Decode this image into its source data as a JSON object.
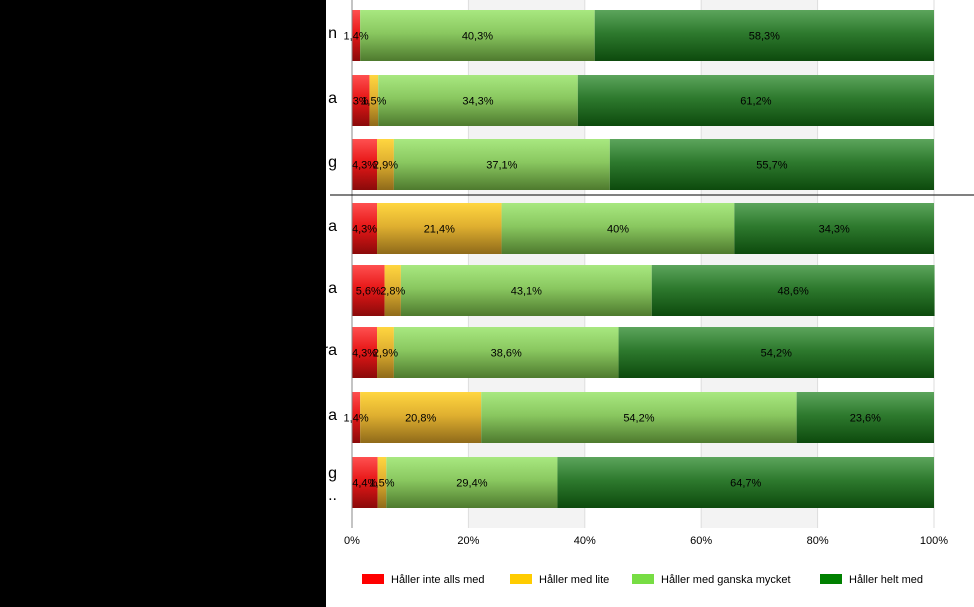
{
  "chart_data": {
    "type": "bar",
    "orientation": "horizontal",
    "stacked": true,
    "categories": [
      "n",
      "a",
      "g",
      "a",
      "a",
      "ra",
      "a",
      "g\n.."
    ],
    "series": [
      {
        "name": "Håller inte alls med",
        "color": "#ff0000",
        "values": [
          1.4,
          3,
          4.3,
          4.3,
          5.6,
          4.3,
          1.4,
          4.4
        ],
        "labels": [
          "1,4%",
          "3%",
          "4,3%",
          "4,3%",
          "5,6%",
          "4,3%",
          "1,4%",
          "4,4%"
        ]
      },
      {
        "name": "Håller med lite",
        "color": "#ffcc00",
        "values": [
          0,
          1.5,
          2.9,
          21.4,
          2.8,
          2.9,
          20.8,
          1.5
        ],
        "labels": [
          "",
          "1,5%",
          "2,9%",
          "21,4%",
          "2,8%",
          "2,9%",
          "20,8%",
          "1,5%"
        ]
      },
      {
        "name": "Håller med ganska mycket",
        "color": "#77dd44",
        "values": [
          40.3,
          34.3,
          37.1,
          40,
          43.1,
          38.6,
          54.2,
          29.4
        ],
        "labels": [
          "40,3%",
          "34,3%",
          "37,1%",
          "40%",
          "43,1%",
          "38,6%",
          "54,2%",
          "29,4%"
        ]
      },
      {
        "name": "Håller helt med",
        "color": "#008000",
        "values": [
          58.3,
          61.2,
          55.7,
          34.3,
          48.6,
          54.2,
          23.6,
          64.7
        ],
        "labels": [
          "58,3%",
          "61,2%",
          "55,7%",
          "34,3%",
          "48,6%",
          "54,2%",
          "23,6%",
          "64,7%"
        ]
      }
    ],
    "x_ticks": [
      "0%",
      "20%",
      "40%",
      "60%",
      "80%",
      "100%"
    ],
    "xlim": [
      0,
      100
    ],
    "group_divider_after_index": 2,
    "legend_position": "bottom",
    "grid": true
  }
}
